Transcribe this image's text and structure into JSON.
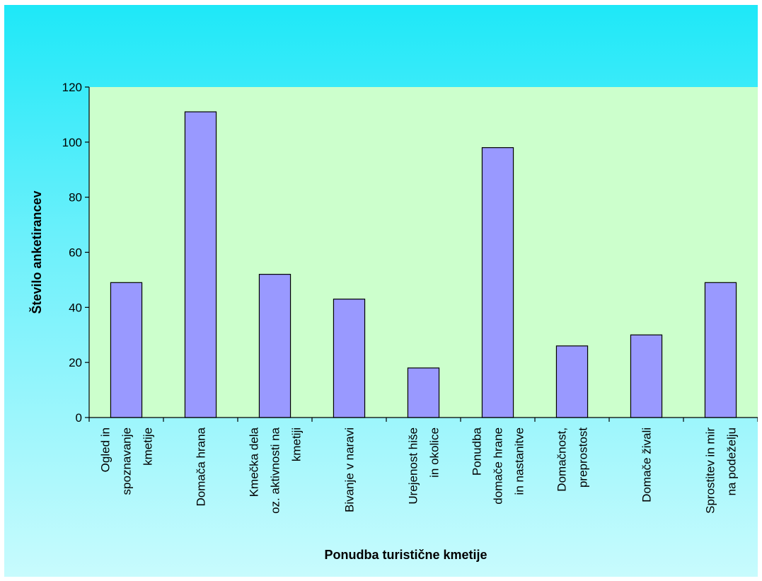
{
  "chart_data": {
    "type": "bar",
    "xlabel": "Ponudba turistične kmetije",
    "ylabel": "Število anketirancev",
    "ylim": [
      0,
      120
    ],
    "yticks": [
      0,
      20,
      40,
      60,
      80,
      100,
      120
    ],
    "categories": [
      [
        "Ogled in",
        "spoznavanje",
        "kmetije"
      ],
      [
        "Domača hrana"
      ],
      [
        "Kmečka dela",
        "oz. aktivnosti na",
        "kmetiji"
      ],
      [
        "Bivanje v naravi"
      ],
      [
        "Urejenost hiše",
        "in okolice"
      ],
      [
        "Ponudba",
        "domače hrane",
        "in nastanitve"
      ],
      [
        "Domačnost,",
        "preprostost"
      ],
      [
        "Domače živali"
      ],
      [
        "Sprostitev in mir",
        "na podeželju"
      ]
    ],
    "values": [
      49,
      111,
      52,
      43,
      18,
      98,
      26,
      30,
      49
    ],
    "colors": {
      "bar": "#9999ff",
      "bar_stroke": "#000000",
      "plot_bg": "#ccffcc"
    },
    "grid": false,
    "legend": "none"
  }
}
